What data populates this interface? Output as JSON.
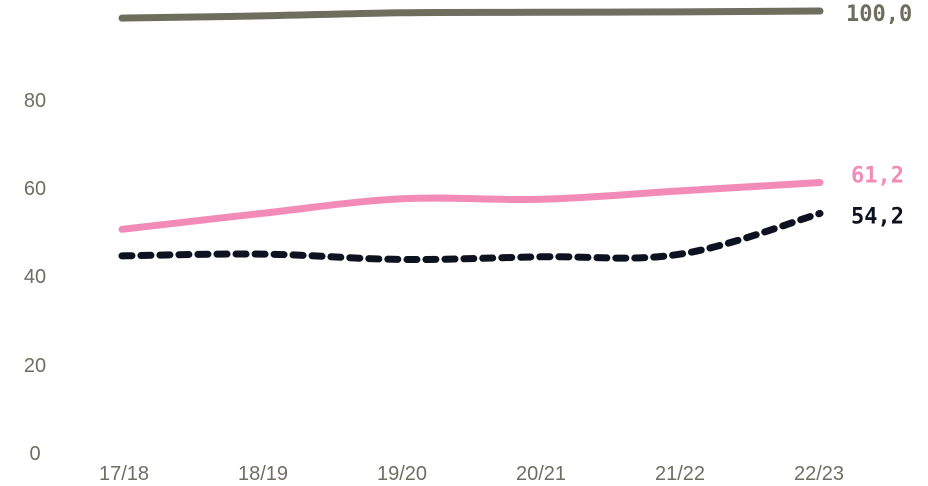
{
  "chart_data": {
    "type": "line",
    "categories": [
      "17/18",
      "18/19",
      "19/20",
      "20/21",
      "21/22",
      "22/23"
    ],
    "series": [
      {
        "values": [
          98.4,
          98.9,
          99.6,
          99.7,
          99.8,
          100.0
        ],
        "color": "#6e6e5e",
        "style": "solid",
        "end_label": "100,0"
      },
      {
        "values": [
          50.6,
          54.2,
          57.5,
          57.4,
          59.3,
          61.2
        ],
        "color": "#f28bb8",
        "style": "solid",
        "end_label": "61,2"
      },
      {
        "values": [
          44.6,
          45.0,
          43.8,
          44.4,
          45.0,
          54.2
        ],
        "color": "#0c1220",
        "style": "dashed",
        "end_label": "54,2"
      }
    ],
    "y_ticks": [
      "0",
      "20",
      "40",
      "60",
      "80"
    ],
    "ylim": [
      0,
      100
    ],
    "grid": false,
    "legend": "none"
  }
}
